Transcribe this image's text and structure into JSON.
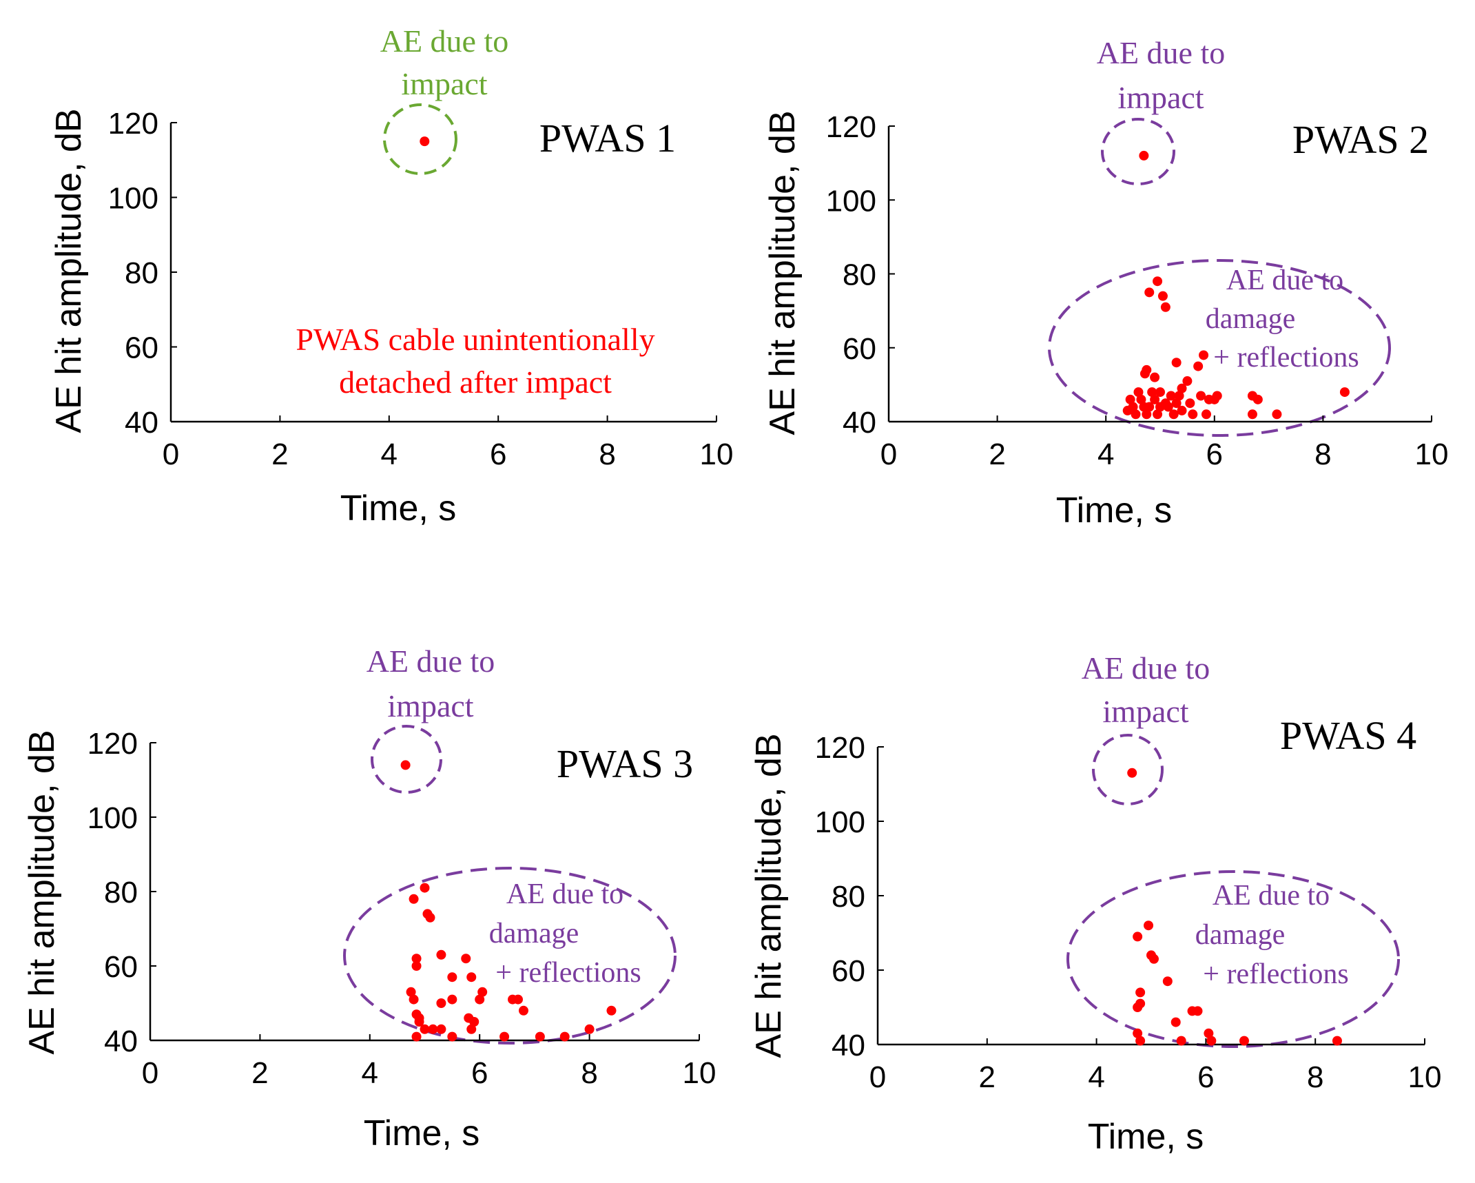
{
  "colors": {
    "points": "#ff0000",
    "impact_green": "#6aa832",
    "purple": "#7a3c9e",
    "axis": "#000000",
    "note_red": "#ff0000"
  },
  "chart_data": [
    {
      "type": "scatter",
      "title": "PWAS 1",
      "xlabel": "Time, s",
      "ylabel": "AE hit amplitude, dB",
      "xlim": [
        0,
        10
      ],
      "ylim": [
        40,
        120
      ],
      "xticks": [
        "0",
        "2",
        "4",
        "6",
        "8",
        "10"
      ],
      "yticks": [
        "40",
        "60",
        "80",
        "100",
        "120"
      ],
      "impact_label": [
        "AE due to",
        "impact"
      ],
      "impact_color": "green",
      "note": [
        "PWAS cable unintentionally",
        "detached after impact"
      ],
      "points": [
        [
          4.65,
          115
        ]
      ]
    },
    {
      "type": "scatter",
      "title": "PWAS 2",
      "xlabel": "Time, s",
      "ylabel": "AE hit amplitude, dB",
      "xlim": [
        0,
        10
      ],
      "ylim": [
        40,
        120
      ],
      "xticks": [
        "0",
        "2",
        "4",
        "6",
        "8",
        "10"
      ],
      "yticks": [
        "40",
        "60",
        "80",
        "100",
        "120"
      ],
      "impact_label": [
        "AE due to",
        "impact"
      ],
      "impact_color": "purple",
      "damage_label": [
        "AE due to",
        "damage",
        "+ reflections"
      ],
      "points": [
        [
          4.7,
          112
        ],
        [
          4.95,
          78
        ],
        [
          4.8,
          75
        ],
        [
          5.05,
          74
        ],
        [
          5.1,
          71
        ],
        [
          5.8,
          58
        ],
        [
          5.3,
          56
        ],
        [
          5.7,
          55
        ],
        [
          4.75,
          54
        ],
        [
          4.72,
          53
        ],
        [
          4.9,
          52
        ],
        [
          5.5,
          51
        ],
        [
          5.4,
          49
        ],
        [
          4.6,
          48
        ],
        [
          4.85,
          48
        ],
        [
          5.0,
          48
        ],
        [
          5.2,
          47
        ],
        [
          5.35,
          47
        ],
        [
          5.75,
          47
        ],
        [
          6.05,
          47
        ],
        [
          6.7,
          47
        ],
        [
          6.8,
          46
        ],
        [
          8.4,
          48
        ],
        [
          4.45,
          46
        ],
        [
          4.65,
          46
        ],
        [
          4.9,
          46
        ],
        [
          5.1,
          45
        ],
        [
          5.3,
          45
        ],
        [
          5.55,
          45
        ],
        [
          5.9,
          46
        ],
        [
          6.0,
          46
        ],
        [
          4.5,
          44
        ],
        [
          4.7,
          44
        ],
        [
          4.8,
          44
        ],
        [
          5.0,
          44
        ],
        [
          5.15,
          44
        ],
        [
          5.4,
          43
        ],
        [
          4.4,
          43
        ],
        [
          4.55,
          42
        ],
        [
          4.75,
          42
        ],
        [
          4.95,
          42
        ],
        [
          5.25,
          42
        ],
        [
          5.6,
          42
        ],
        [
          5.85,
          42
        ],
        [
          6.7,
          42
        ],
        [
          7.15,
          42
        ]
      ]
    },
    {
      "type": "scatter",
      "title": "PWAS 3",
      "xlabel": "Time, s",
      "ylabel": "AE hit amplitude, dB",
      "xlim": [
        0,
        10
      ],
      "ylim": [
        40,
        120
      ],
      "xticks": [
        "0",
        "2",
        "4",
        "6",
        "8",
        "10"
      ],
      "yticks": [
        "40",
        "60",
        "80",
        "100",
        "120"
      ],
      "impact_label": [
        "AE due to",
        "impact"
      ],
      "impact_color": "purple",
      "damage_label": [
        "AE due to",
        "damage",
        "+ reflections"
      ],
      "points": [
        [
          4.65,
          114
        ],
        [
          5.0,
          81
        ],
        [
          4.8,
          78
        ],
        [
          5.05,
          74
        ],
        [
          5.1,
          73
        ],
        [
          5.3,
          63
        ],
        [
          5.75,
          62
        ],
        [
          4.85,
          62
        ],
        [
          4.85,
          60
        ],
        [
          5.5,
          57
        ],
        [
          5.85,
          57
        ],
        [
          6.05,
          53
        ],
        [
          4.75,
          53
        ],
        [
          4.8,
          51
        ],
        [
          5.5,
          51
        ],
        [
          6.0,
          51
        ],
        [
          6.6,
          51
        ],
        [
          6.7,
          51
        ],
        [
          5.3,
          50
        ],
        [
          4.85,
          47
        ],
        [
          6.8,
          48
        ],
        [
          8.4,
          48
        ],
        [
          4.9,
          46
        ],
        [
          5.8,
          46
        ],
        [
          5.9,
          45
        ],
        [
          4.9,
          45
        ],
        [
          5.0,
          43
        ],
        [
          5.15,
          43
        ],
        [
          5.3,
          43
        ],
        [
          5.85,
          43
        ],
        [
          8.0,
          43
        ],
        [
          4.85,
          41
        ],
        [
          5.5,
          41
        ],
        [
          6.45,
          41
        ],
        [
          7.1,
          41
        ],
        [
          7.55,
          41
        ]
      ]
    },
    {
      "type": "scatter",
      "title": "PWAS 4",
      "xlabel": "Time, s",
      "ylabel": "AE hit amplitude, dB",
      "xlim": [
        0,
        10
      ],
      "ylim": [
        40,
        120
      ],
      "xticks": [
        "0",
        "2",
        "4",
        "6",
        "8",
        "10"
      ],
      "yticks": [
        "40",
        "60",
        "80",
        "100",
        "120"
      ],
      "impact_label": [
        "AE due to",
        "impact"
      ],
      "impact_color": "purple",
      "damage_label": [
        "AE due to",
        "damage",
        "+ reflections"
      ],
      "points": [
        [
          4.65,
          113
        ],
        [
          4.95,
          72
        ],
        [
          4.75,
          69
        ],
        [
          5.0,
          64
        ],
        [
          5.05,
          63
        ],
        [
          5.3,
          57
        ],
        [
          4.8,
          54
        ],
        [
          4.8,
          51
        ],
        [
          4.75,
          50
        ],
        [
          5.75,
          49
        ],
        [
          5.85,
          49
        ],
        [
          5.45,
          46
        ],
        [
          4.75,
          43
        ],
        [
          6.05,
          43
        ],
        [
          6.1,
          41
        ],
        [
          5.55,
          41
        ],
        [
          4.8,
          41
        ],
        [
          6.7,
          41
        ],
        [
          8.4,
          41
        ]
      ]
    }
  ]
}
